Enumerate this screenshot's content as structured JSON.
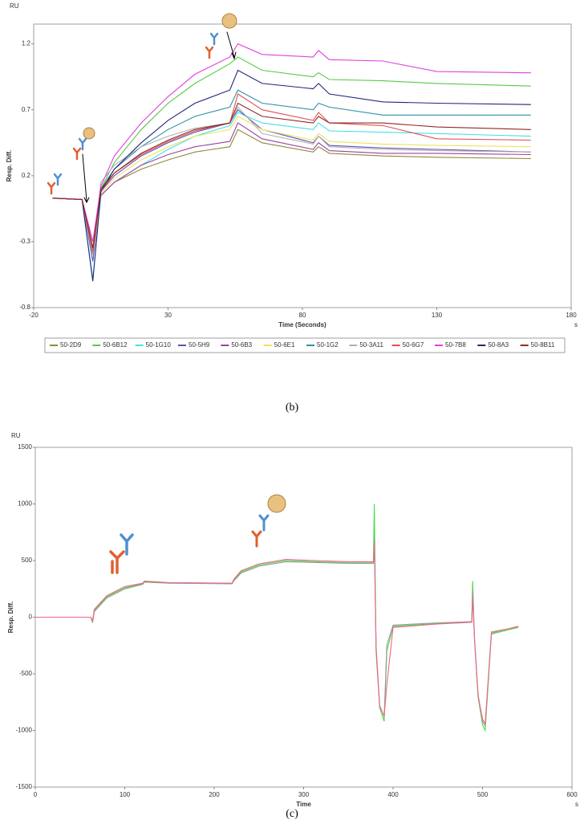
{
  "chart_data": [
    {
      "type": "line",
      "y_unit": "RU",
      "x_unit": "s",
      "y_label": "Resp. Diff.",
      "x_label": "Time (Seconds)",
      "caption": "(b)",
      "xlim": [
        -20,
        180
      ],
      "xticks": [
        -20,
        30,
        80,
        130,
        180
      ],
      "ylim": [
        -0.8,
        1.35
      ],
      "yticks": [
        -0.8,
        -0.3,
        0.2,
        0.7,
        1.2
      ],
      "grid": false,
      "legend": "bottom",
      "x": [
        -13,
        -2,
        2,
        5,
        10,
        20,
        30,
        40,
        53,
        56,
        65,
        84,
        86,
        90,
        110,
        130,
        165
      ],
      "series": [
        {
          "name": "50-2D9",
          "color": "#8b8b3a",
          "values": [
            0.03,
            0.02,
            -0.3,
            0.05,
            0.15,
            0.25,
            0.32,
            0.38,
            0.42,
            0.55,
            0.45,
            0.38,
            0.42,
            0.37,
            0.35,
            0.34,
            0.33
          ]
        },
        {
          "name": "50-6B12",
          "color": "#55cc44",
          "values": [
            0.03,
            0.02,
            -0.35,
            0.1,
            0.3,
            0.55,
            0.75,
            0.9,
            1.05,
            1.1,
            1.0,
            0.95,
            0.98,
            0.93,
            0.92,
            0.9,
            0.88
          ]
        },
        {
          "name": "50-1G10",
          "color": "#44e0e8",
          "values": [
            0.03,
            0.02,
            -0.58,
            0.05,
            0.15,
            0.28,
            0.4,
            0.5,
            0.58,
            0.68,
            0.6,
            0.55,
            0.6,
            0.54,
            0.53,
            0.52,
            0.5
          ]
        },
        {
          "name": "50-5H9",
          "color": "#5a55b0",
          "values": [
            0.03,
            0.02,
            -0.45,
            0.08,
            0.2,
            0.35,
            0.45,
            0.53,
            0.6,
            0.7,
            0.55,
            0.45,
            0.5,
            0.43,
            0.41,
            0.4,
            0.38
          ]
        },
        {
          "name": "50-6B3",
          "color": "#a040a0",
          "values": [
            0.03,
            0.02,
            -0.35,
            0.05,
            0.15,
            0.28,
            0.36,
            0.42,
            0.46,
            0.6,
            0.48,
            0.4,
            0.45,
            0.39,
            0.37,
            0.37,
            0.36
          ]
        },
        {
          "name": "50-6E1",
          "color": "#f0e060",
          "values": [
            0.03,
            0.02,
            -0.4,
            0.06,
            0.18,
            0.32,
            0.42,
            0.5,
            0.55,
            0.65,
            0.55,
            0.47,
            0.52,
            0.46,
            0.44,
            0.43,
            0.42
          ]
        },
        {
          "name": "50-1G2",
          "color": "#2f90a8",
          "values": [
            0.03,
            0.02,
            -0.4,
            0.1,
            0.25,
            0.42,
            0.55,
            0.65,
            0.72,
            0.85,
            0.75,
            0.7,
            0.75,
            0.72,
            0.66,
            0.66,
            0.66
          ]
        },
        {
          "name": "50-3A11",
          "color": "#b0b0b0",
          "values": [
            0.03,
            0.02,
            -0.4,
            0.15,
            0.28,
            0.42,
            0.5,
            0.56,
            0.6,
            0.72,
            0.52,
            0.44,
            0.5,
            0.42,
            0.4,
            0.39,
            0.38
          ]
        },
        {
          "name": "50-6G7",
          "color": "#e05050",
          "values": [
            0.03,
            0.02,
            -0.38,
            0.08,
            0.22,
            0.36,
            0.46,
            0.54,
            0.6,
            0.82,
            0.7,
            0.62,
            0.68,
            0.6,
            0.58,
            0.48,
            0.47
          ]
        },
        {
          "name": "50-7B8",
          "color": "#e040e0",
          "values": [
            0.03,
            0.02,
            -0.3,
            0.12,
            0.35,
            0.6,
            0.8,
            0.97,
            1.1,
            1.2,
            1.12,
            1.1,
            1.15,
            1.08,
            1.07,
            0.99,
            0.98
          ]
        },
        {
          "name": "50-8A3",
          "color": "#25257a",
          "values": [
            0.03,
            0.02,
            -0.6,
            0.08,
            0.25,
            0.45,
            0.62,
            0.75,
            0.85,
            1.0,
            0.9,
            0.86,
            0.9,
            0.82,
            0.76,
            0.75,
            0.74
          ]
        },
        {
          "name": "50-8B11",
          "color": "#902828",
          "values": [
            0.03,
            0.02,
            -0.35,
            0.1,
            0.22,
            0.37,
            0.47,
            0.55,
            0.6,
            0.75,
            0.65,
            0.6,
            0.65,
            0.6,
            0.6,
            0.57,
            0.55
          ]
        }
      ]
    },
    {
      "type": "line",
      "y_unit": "RU",
      "x_unit": "s",
      "y_label": "Resp. Diff.",
      "x_label": "Time",
      "caption": "(c)",
      "xlim": [
        0,
        600
      ],
      "xticks": [
        0,
        100,
        200,
        300,
        400,
        500,
        600
      ],
      "ylim": [
        -1500,
        1500
      ],
      "yticks": [
        -1500,
        -1000,
        -500,
        0,
        500,
        1000,
        1500
      ],
      "grid": false,
      "x": [
        0,
        62,
        64,
        66,
        80,
        100,
        120,
        122,
        150,
        220,
        222,
        230,
        250,
        280,
        350,
        378,
        379,
        381,
        385,
        390,
        393,
        400,
        450,
        488,
        489,
        491,
        495,
        500,
        503,
        510,
        540
      ],
      "series": [
        {
          "color": "#44dd44",
          "values": [
            0,
            0,
            -40,
            60,
            180,
            260,
            295,
            320,
            305,
            300,
            330,
            400,
            460,
            500,
            480,
            480,
            1000,
            -300,
            -800,
            -920,
            -300,
            -80,
            -55,
            -40,
            320,
            -200,
            -700,
            -950,
            -1000,
            -150,
            -90
          ]
        },
        {
          "color": "#999999",
          "values": [
            0,
            0,
            -50,
            50,
            170,
            250,
            290,
            310,
            300,
            295,
            320,
            390,
            450,
            490,
            475,
            475,
            700,
            -250,
            -780,
            -880,
            -250,
            -70,
            -50,
            -40,
            240,
            -180,
            -680,
            -920,
            -960,
            -130,
            -85
          ]
        },
        {
          "color": "#ee6688",
          "values": [
            0,
            0,
            -30,
            70,
            190,
            270,
            300,
            315,
            305,
            300,
            335,
            410,
            470,
            510,
            490,
            490,
            660,
            -280,
            -790,
            -870,
            -600,
            -90,
            -60,
            -45,
            170,
            -190,
            -690,
            -900,
            -940,
            -140,
            -80
          ]
        }
      ]
    }
  ]
}
